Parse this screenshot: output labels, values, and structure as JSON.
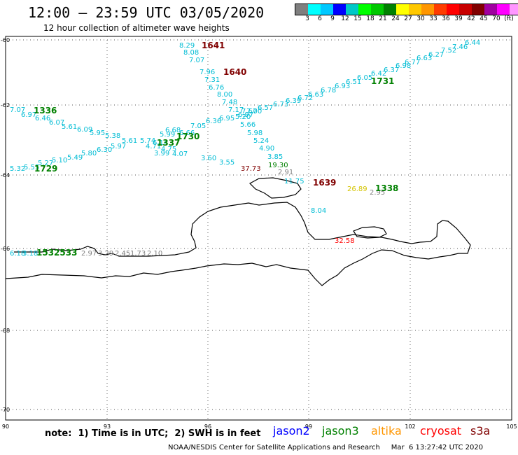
{
  "header": {
    "title": "12:00 – 23:59 UTC 03/05/2020",
    "subtitle": "12 hour collection of altimeter wave heights"
  },
  "scale": {
    "colors": [
      "#7f7f7f",
      "#00ffff",
      "#00c8ff",
      "#0000ff",
      "#00c8c8",
      "#00ff00",
      "#00c800",
      "#008000",
      "#ffff00",
      "#ffc800",
      "#ff9600",
      "#ff3c00",
      "#ff0000",
      "#c80000",
      "#800000",
      "#a000a0",
      "#ff00ff",
      "#ff96ff",
      "#000000"
    ],
    "labels": [
      "3",
      "6",
      "9",
      "12",
      "15",
      "18",
      "21",
      "24",
      "27",
      "30",
      "33",
      "36",
      "39",
      "42",
      "45",
      "70",
      "(ft)"
    ]
  },
  "axes": {
    "lat_labels": [
      "-60",
      "-62",
      "-64",
      "-66",
      "-68",
      "-70"
    ],
    "lon_labels": [
      "90",
      "93",
      "96",
      "99",
      "102",
      "105"
    ]
  },
  "tracks": [
    {
      "color": "#00bcd4",
      "labels": [
        "8.29",
        "8.08",
        "7.07",
        "7.96",
        "7.31",
        "6.76",
        "8.00",
        "7.48",
        "7.17",
        "7.67",
        "6.95",
        "5.20",
        "5.66",
        "5.98",
        "5.24",
        "4.90",
        "3.85"
      ]
    },
    {
      "color": "#00bcd4",
      "labels": [
        "6.44",
        "7.46",
        "7.52",
        "6.27",
        "6.63",
        "6.77",
        "6.98",
        "6.37",
        "6.42",
        "6.05",
        "6.51",
        "6.93",
        "6.78",
        "6.63",
        "6.72",
        "6.39",
        "6.73",
        "6.57",
        "7.00",
        "6.97",
        "6.36",
        "7.05",
        "6.66",
        "6.68",
        "6.14",
        "5.74"
      ]
    },
    {
      "color": "#00bcd4",
      "labels": [
        "7.07",
        "6.97",
        "6.46",
        "6.07",
        "5.61",
        "6.09",
        "5.95",
        "5.38",
        "5.61",
        "4.71",
        "4.75",
        "3.99",
        "4.07",
        "3.60",
        "3.55",
        "5.99"
      ]
    },
    {
      "color": "#00bcd4",
      "labels": [
        "5.32",
        "5.55",
        "5.27",
        "5.10",
        "5.49",
        "5.80",
        "6.30",
        "5.97"
      ]
    },
    {
      "color": "#00bcd4",
      "labels": [
        "6.18",
        "3.18",
        "11.75",
        "8.04"
      ]
    },
    {
      "color": "#808080",
      "labels": [
        "2.97",
        "3.29",
        "2.45",
        "1.73",
        "2.10",
        "2.91",
        "2.95"
      ]
    },
    {
      "color": "#008000",
      "labels": [
        "19.30"
      ]
    },
    {
      "color": "#d4c400",
      "labels": [
        "26.89"
      ]
    },
    {
      "color": "#800000",
      "labels": [
        "37.73"
      ]
    },
    {
      "color": "#ff0000",
      "labels": [
        "32.58"
      ]
    }
  ],
  "time_labels": [
    {
      "text": "1641",
      "color": "#800000"
    },
    {
      "text": "1640",
      "color": "#800000"
    },
    {
      "text": "1639",
      "color": "#800000"
    },
    {
      "text": "1731",
      "color": "#008000"
    },
    {
      "text": "1730",
      "color": "#008000"
    },
    {
      "text": "1729",
      "color": "#008000"
    },
    {
      "text": "1336",
      "color": "#008000"
    },
    {
      "text": "1337",
      "color": "#008000"
    },
    {
      "text": "1338",
      "color": "#008000"
    },
    {
      "text": "1532533",
      "color": "#008000"
    }
  ],
  "footer": {
    "note": "note:  1) Time is in UTC;  2) SWH is in feet",
    "legend": [
      {
        "name": "jason2",
        "color": "#0000ff"
      },
      {
        "name": "jason3",
        "color": "#008000"
      },
      {
        "name": "altika",
        "color": "#ff9600"
      },
      {
        "name": "cryosat",
        "color": "#ff0000"
      },
      {
        "name": "s3a",
        "color": "#800000"
      }
    ],
    "credit": "NOAA/NESDIS Center for Satellite Applications and Research     Mar  6 13:27:42 UTC 2020"
  }
}
